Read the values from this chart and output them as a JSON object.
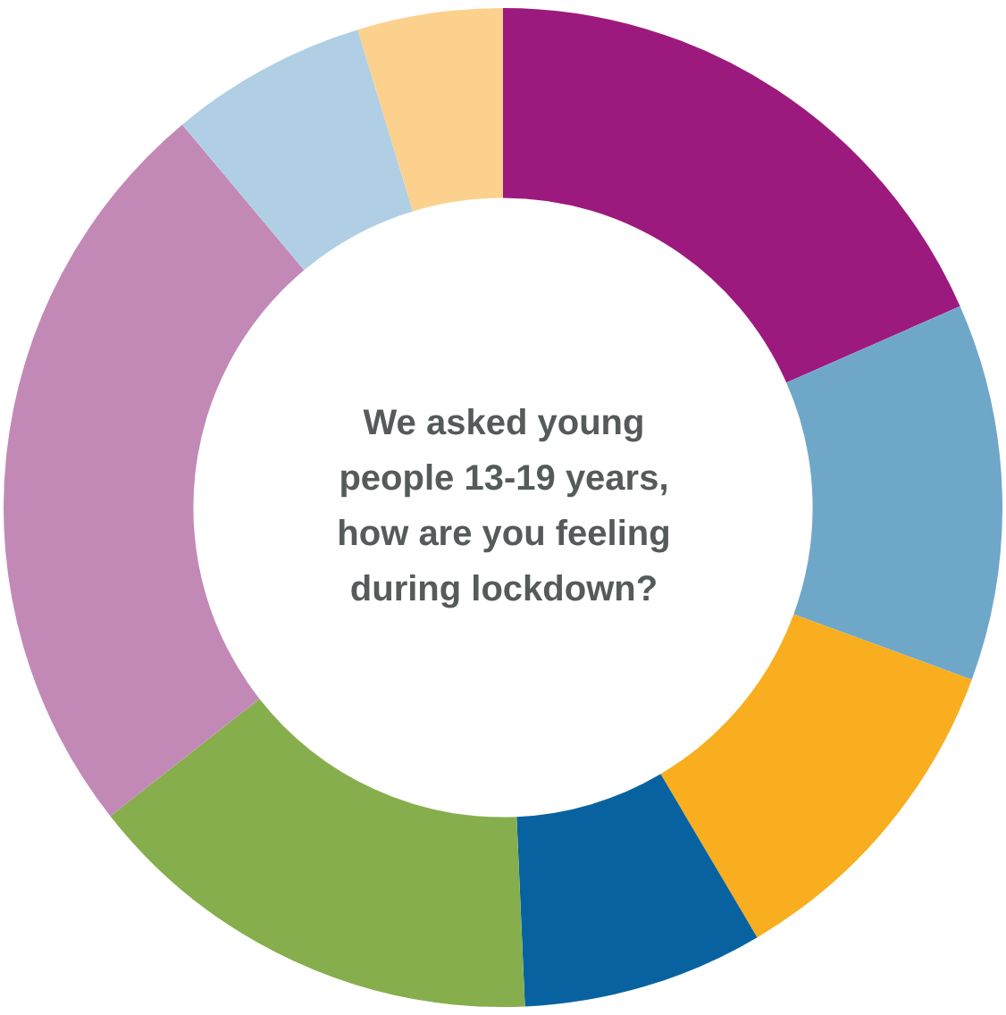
{
  "chart_data": {
    "type": "donut",
    "title": "We asked young people 13-19 years, how are you feeling during lockdown?",
    "categories": [
      null,
      null,
      null,
      null,
      null,
      null,
      null,
      null
    ],
    "values": [
      18.4,
      12.2,
      10.9,
      7.8,
      15.1,
      24.5,
      6.4,
      4.7
    ],
    "colors": [
      "#9c1a7e",
      "#6fa7c9",
      "#f8ae1e",
      "#0862a0",
      "#86ae4c",
      "#c289b7",
      "#b0cfe5",
      "#fcd08d"
    ],
    "legend": false
  }
}
